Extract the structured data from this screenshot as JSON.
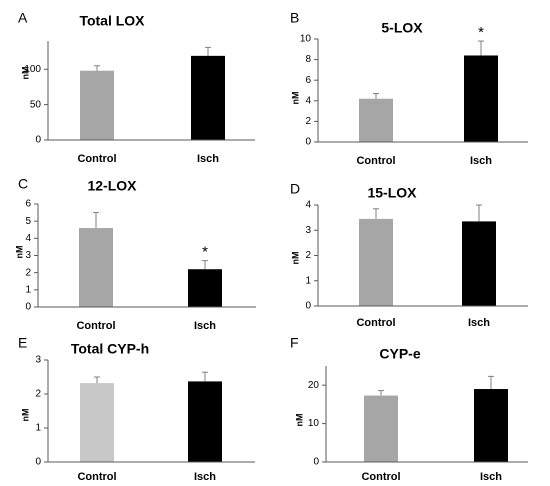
{
  "chart_data": [
    {
      "panel": "A",
      "type": "bar",
      "title": "Total LOX",
      "ylabel": "nM",
      "categories": [
        "Control",
        "Isch"
      ],
      "values": [
        98,
        119
      ],
      "errors": [
        7,
        12
      ],
      "colors": [
        "#a6a6a6",
        "#000000"
      ],
      "ylim": [
        0,
        140
      ],
      "yticks": [
        0,
        50,
        100
      ],
      "significance": [
        "",
        ""
      ]
    },
    {
      "panel": "B",
      "type": "bar",
      "title": "5-LOX",
      "ylabel": "nM",
      "categories": [
        "Control",
        "Isch"
      ],
      "values": [
        4.2,
        8.4
      ],
      "errors": [
        0.5,
        1.4
      ],
      "colors": [
        "#a6a6a6",
        "#000000"
      ],
      "ylim": [
        0,
        10
      ],
      "yticks": [
        0,
        2,
        4,
        6,
        8,
        10
      ],
      "significance": [
        "",
        "*"
      ]
    },
    {
      "panel": "C",
      "type": "bar",
      "title": "12-LOX",
      "ylabel": "nM",
      "categories": [
        "Control",
        "Isch"
      ],
      "values": [
        4.6,
        2.2
      ],
      "errors": [
        0.9,
        0.5
      ],
      "colors": [
        "#a6a6a6",
        "#000000"
      ],
      "ylim": [
        0,
        6
      ],
      "yticks": [
        0,
        1,
        2,
        3,
        4,
        5,
        6
      ],
      "significance": [
        "",
        "*"
      ]
    },
    {
      "panel": "D",
      "type": "bar",
      "title": "15-LOX",
      "ylabel": "nM",
      "categories": [
        "Control",
        "Isch"
      ],
      "values": [
        3.45,
        3.35
      ],
      "errors": [
        0.4,
        0.65
      ],
      "colors": [
        "#a6a6a6",
        "#000000"
      ],
      "ylim": [
        0,
        4
      ],
      "yticks": [
        0,
        1,
        2,
        3,
        4
      ],
      "significance": [
        "",
        ""
      ]
    },
    {
      "panel": "E",
      "type": "bar",
      "title": "Total CYP-h",
      "ylabel": "nM",
      "categories": [
        "Control",
        "Isch"
      ],
      "values": [
        2.32,
        2.37
      ],
      "errors": [
        0.18,
        0.27
      ],
      "colors": [
        "#c8c8c8",
        "#000000"
      ],
      "ylim": [
        0,
        3
      ],
      "yticks": [
        0,
        1,
        2,
        3
      ],
      "significance": [
        "",
        ""
      ]
    },
    {
      "panel": "F",
      "type": "bar",
      "title": "CYP-e",
      "ylabel": "nM",
      "categories": [
        "Control",
        "Isch"
      ],
      "values": [
        17.3,
        19.0
      ],
      "errors": [
        1.3,
        3.3
      ],
      "colors": [
        "#a6a6a6",
        "#000000"
      ],
      "ylim": [
        0,
        25
      ],
      "yticks": [
        0,
        10,
        20
      ],
      "significance": [
        "",
        ""
      ]
    }
  ]
}
